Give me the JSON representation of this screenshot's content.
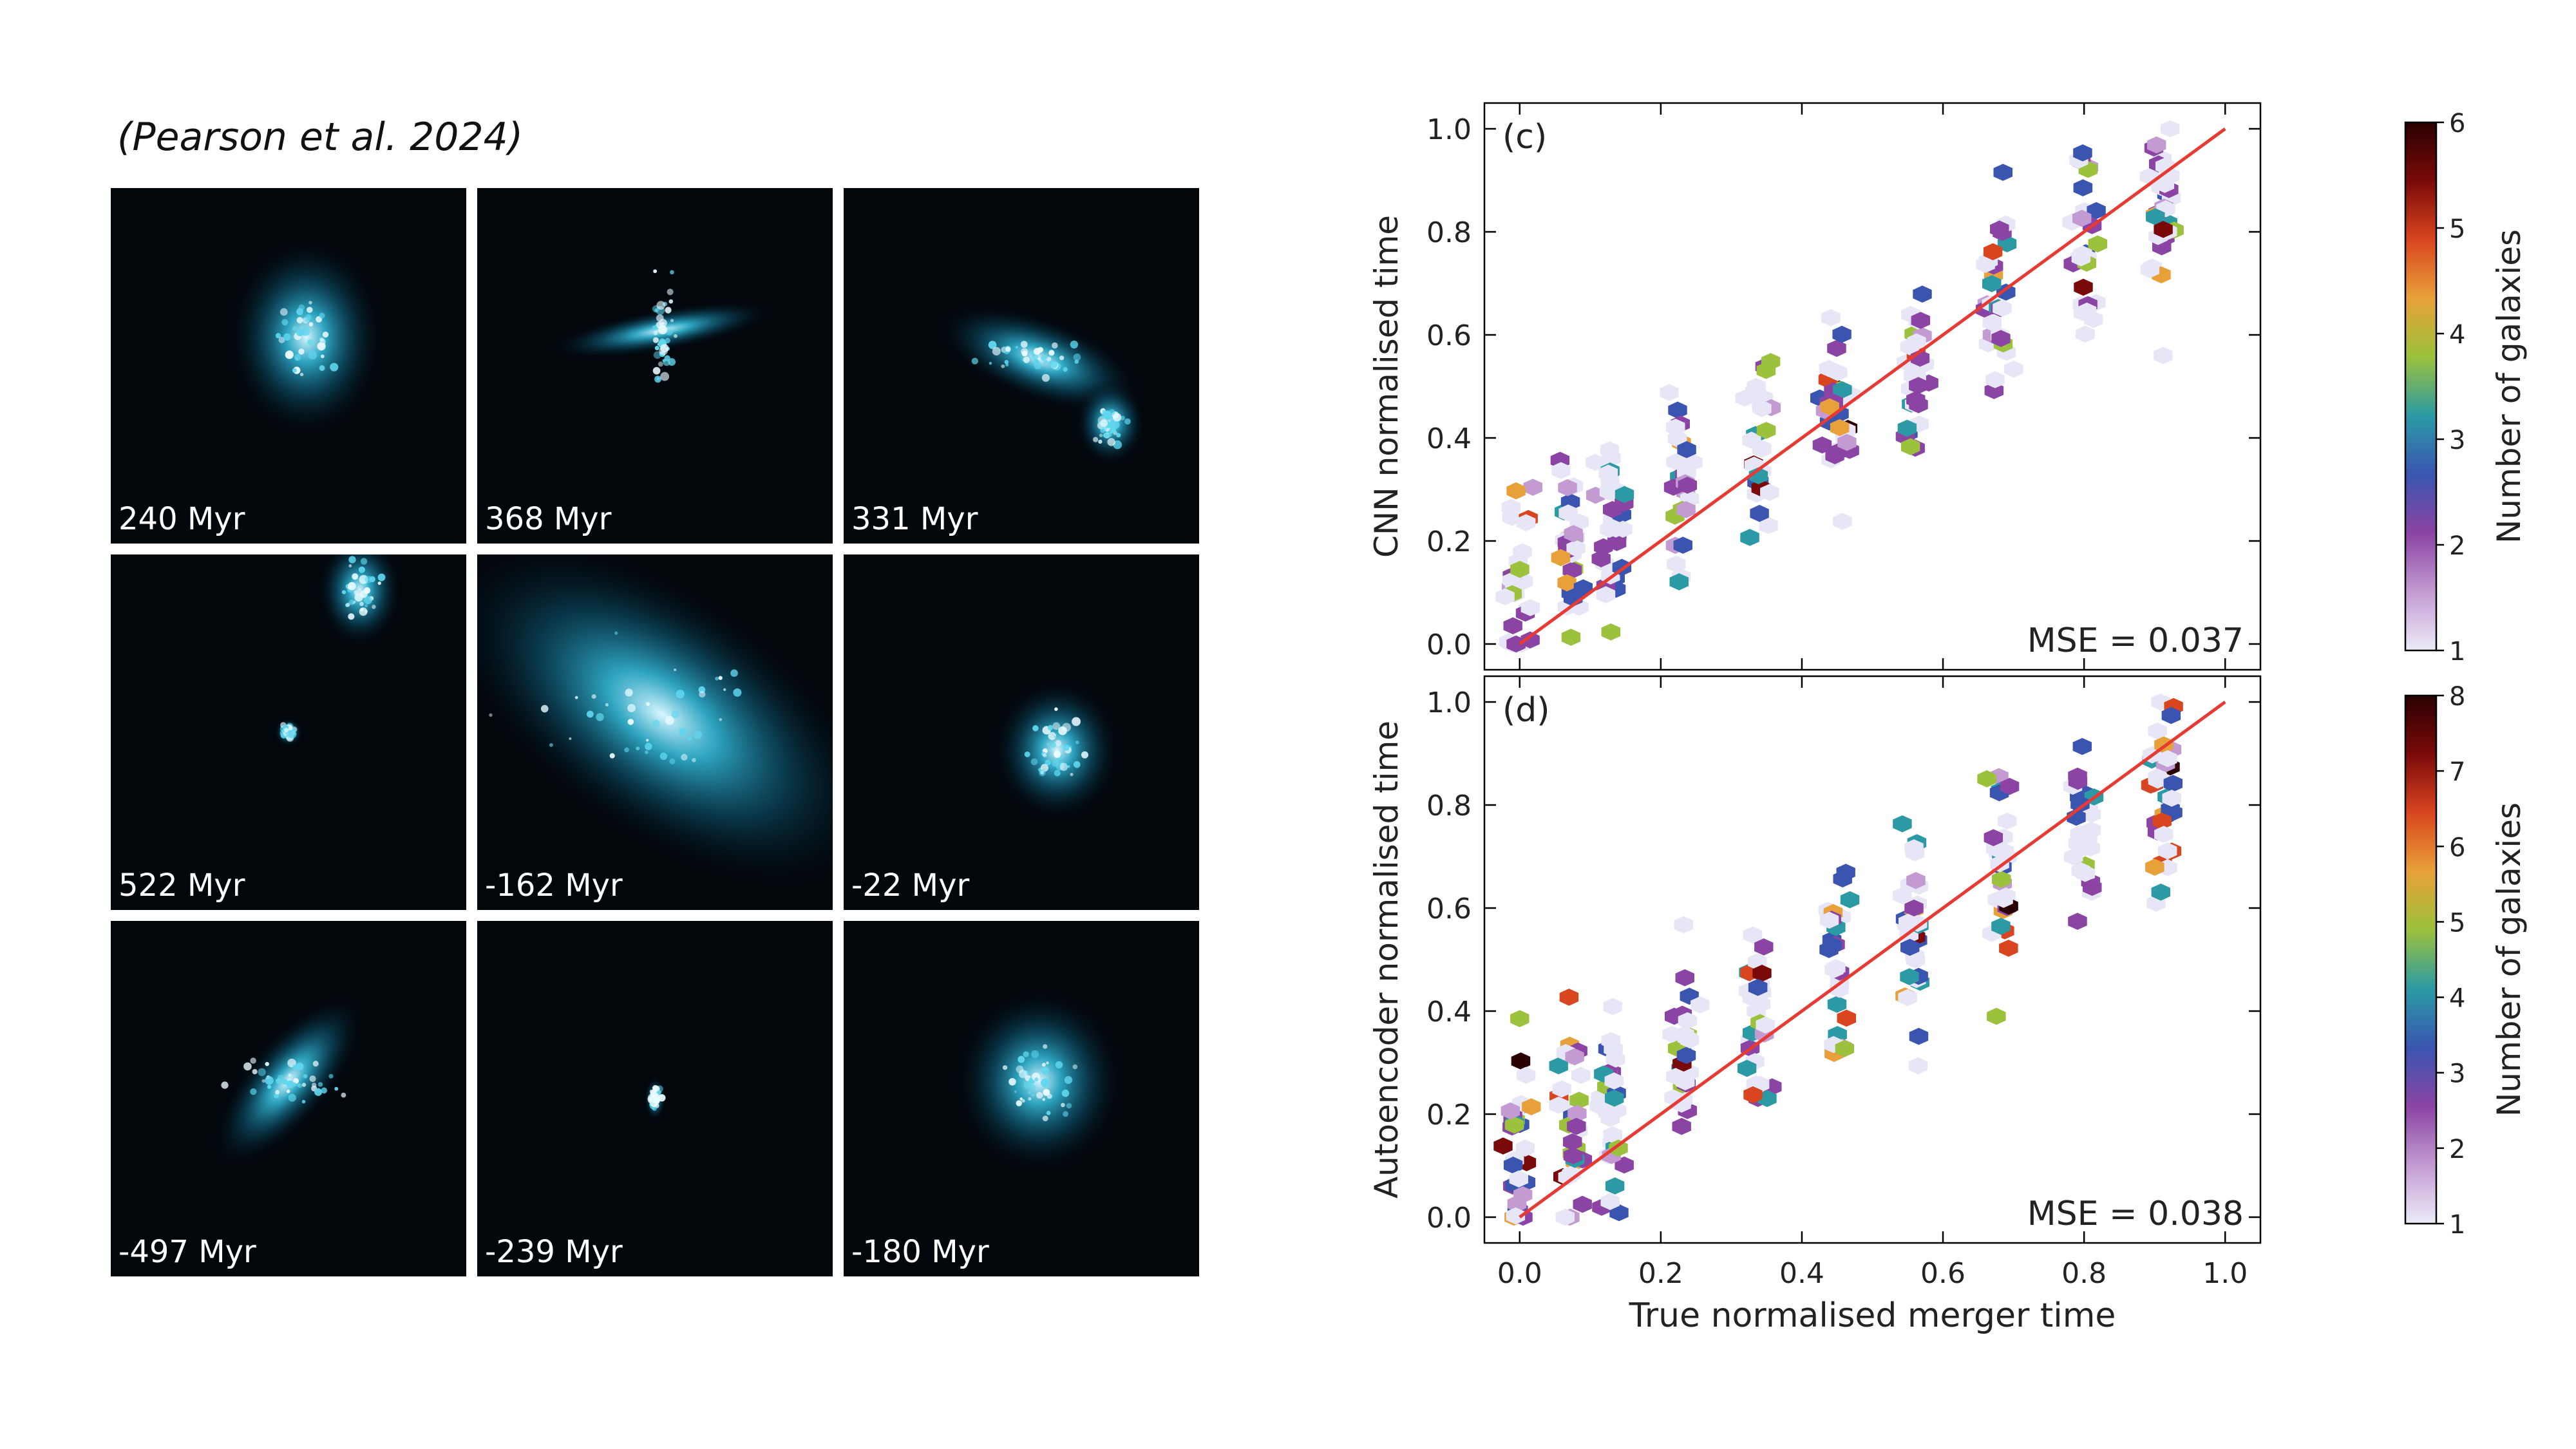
{
  "citation": "(Pearson et al. 2024)",
  "galaxy_panels": [
    {
      "label": "240 Myr"
    },
    {
      "label": "368 Myr"
    },
    {
      "label": "331 Myr"
    },
    {
      "label": "522 Myr"
    },
    {
      "label": "-162 Myr"
    },
    {
      "label": "-22 Myr"
    },
    {
      "label": "-497 Myr"
    },
    {
      "label": "-239 Myr"
    },
    {
      "label": "-180 Myr"
    }
  ],
  "chart_data": [
    {
      "type": "heatmap",
      "panel_label": "(c)",
      "ylabel": "CNN normalised time",
      "xlabel": "",
      "xlim": [
        -0.05,
        1.05
      ],
      "ylim": [
        -0.05,
        1.05
      ],
      "xticks": [
        "0.0",
        "0.2",
        "0.4",
        "0.6",
        "0.8",
        "1.0"
      ],
      "yticks": [
        "0.0",
        "0.2",
        "0.4",
        "0.6",
        "0.8",
        "1.0"
      ],
      "annotation": "MSE = 0.037",
      "colorbar_label": "Number of galaxies",
      "colorbar_ticks": [
        "1",
        "2",
        "3",
        "4",
        "5",
        "6"
      ],
      "colorbar_range": [
        1,
        6
      ],
      "reference_line": {
        "x": [
          0,
          1
        ],
        "y": [
          0,
          1
        ],
        "color": "#e63a33"
      },
      "columns": [
        0.0,
        0.07,
        0.13,
        0.23,
        0.34,
        0.45,
        0.56,
        0.68,
        0.8,
        0.91
      ]
    },
    {
      "type": "heatmap",
      "panel_label": "(d)",
      "ylabel": "Autoencoder normalised time",
      "xlabel": "True normalised merger time",
      "xlim": [
        -0.05,
        1.05
      ],
      "ylim": [
        -0.05,
        1.05
      ],
      "xticks": [
        "0.0",
        "0.2",
        "0.4",
        "0.6",
        "0.8",
        "1.0"
      ],
      "yticks": [
        "0.0",
        "0.2",
        "0.4",
        "0.6",
        "0.8",
        "1.0"
      ],
      "annotation": "MSE = 0.038",
      "colorbar_label": "Number of galaxies",
      "colorbar_ticks": [
        "1",
        "2",
        "3",
        "4",
        "5",
        "6",
        "7",
        "8"
      ],
      "colorbar_range": [
        1,
        8
      ],
      "reference_line": {
        "x": [
          0,
          1
        ],
        "y": [
          0,
          1
        ],
        "color": "#e63a33"
      },
      "columns": [
        0.0,
        0.07,
        0.13,
        0.23,
        0.34,
        0.45,
        0.56,
        0.68,
        0.8,
        0.91
      ]
    }
  ],
  "colors": {
    "line": "#e63a33",
    "faint_cell": "#e6e6f6",
    "tile_background": "#02070c"
  }
}
